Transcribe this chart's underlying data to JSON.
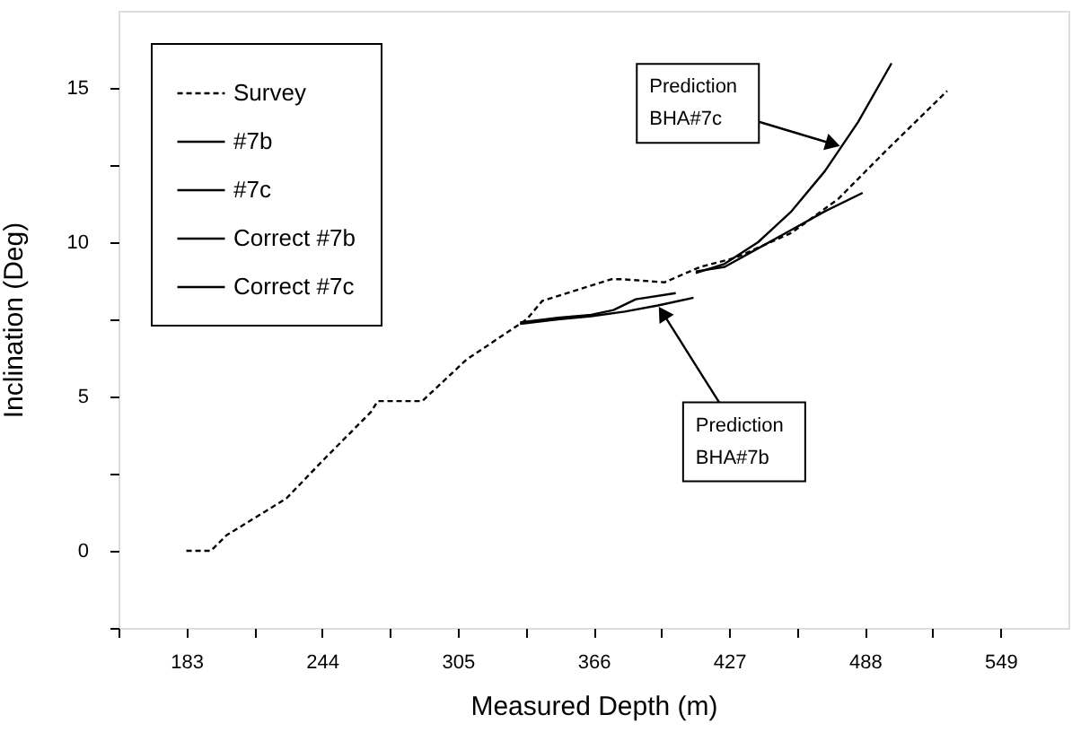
{
  "chart_data": {
    "type": "line",
    "xlabel": "Measured Depth (m)",
    "ylabel": "Inclination (Deg)",
    "xlim": [
      152.5,
      579.5
    ],
    "ylim": [
      -2.5,
      17.5
    ],
    "xticks": [
      {
        "value": 152.5,
        "label": null
      },
      183,
      {
        "value": 213.5,
        "label": null
      },
      244,
      {
        "value": 274.5,
        "label": null
      },
      305,
      {
        "value": 335.5,
        "label": null
      },
      366,
      {
        "value": 396.5,
        "label": null
      },
      427,
      {
        "value": 457.5,
        "label": null
      },
      488,
      {
        "value": 518.5,
        "label": null
      },
      549
    ],
    "yticks": [
      {
        "value": -2.5,
        "label": null
      },
      0,
      {
        "value": 2.5,
        "label": null
      },
      5,
      {
        "value": 7.5,
        "label": null
      },
      10,
      {
        "value": 12.5,
        "label": null
      },
      15
    ],
    "grid": false,
    "legend": "top left",
    "marker": "none",
    "series": [
      {
        "name": "Survey",
        "color": "#000000",
        "line_style": "dashed",
        "x": [
          183,
          194,
          201,
          228,
          244,
          266,
          269,
          289,
          309,
          336,
          343,
          374,
          379,
          398,
          414,
          430,
          455,
          476,
          498,
          525
        ],
        "values": [
          0,
          0,
          0.5,
          1.7,
          2.9,
          4.5,
          4.85,
          4.85,
          6.2,
          7.5,
          8.1,
          8.8,
          8.8,
          8.7,
          9.2,
          9.5,
          10.3,
          11.4,
          13.0,
          14.9
        ]
      },
      {
        "name": "#7b",
        "color": "#000000",
        "line_style": "solid",
        "x": [
          333,
          350,
          365,
          380,
          395,
          411
        ],
        "values": [
          7.35,
          7.5,
          7.6,
          7.75,
          7.95,
          8.2
        ]
      },
      {
        "name": "#7c",
        "color": "#000000",
        "line_style": "solid",
        "x": [
          412,
          425,
          440,
          455,
          470,
          485,
          500
        ],
        "values": [
          9.0,
          9.3,
          10.0,
          11.0,
          12.3,
          13.9,
          15.8
        ]
      },
      {
        "name": "Correct #7b",
        "color": "#000000",
        "line_style": "solid",
        "x": [
          333,
          350,
          365,
          375,
          385,
          403
        ],
        "values": [
          7.4,
          7.55,
          7.65,
          7.8,
          8.15,
          8.35
        ]
      },
      {
        "name": "Correct #7c",
        "color": "#000000",
        "line_style": "solid",
        "x": [
          412,
          425,
          440,
          455,
          470,
          487
        ],
        "values": [
          9.05,
          9.2,
          9.8,
          10.4,
          11.0,
          11.6
        ]
      }
    ],
    "annotations": [
      {
        "text": "Prediction\nBHA#7c",
        "x": 477.5,
        "y": 13.1
      },
      {
        "text": "Prediction\nBHA#7b",
        "x": 395,
        "y": 7.95
      }
    ]
  }
}
